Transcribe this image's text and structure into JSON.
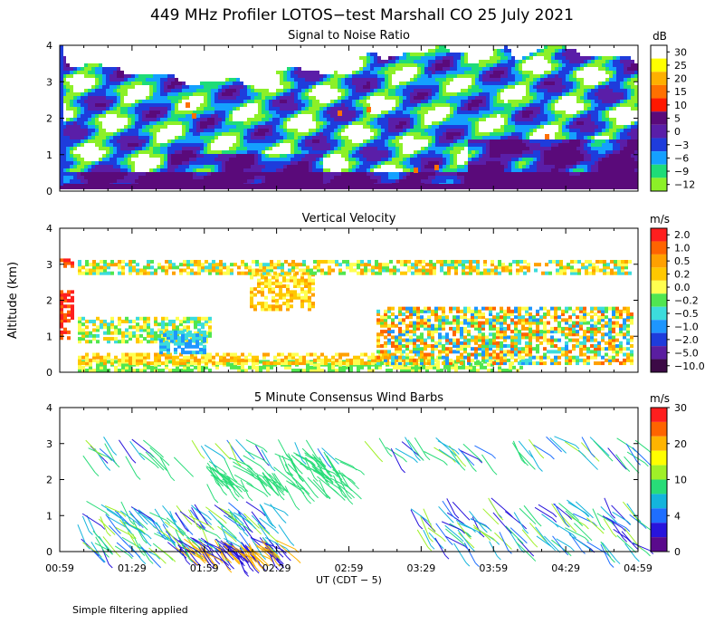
{
  "figure": {
    "title": "449 MHz Profiler LOTOS−test Marshall CO 25 July 2021",
    "footnote": "Simple filtering applied"
  },
  "chart_data": [
    {
      "type": "heatmap",
      "title": "Signal to Noise Ratio",
      "ylabel": "",
      "xlabel": "",
      "ylim": [
        0,
        4
      ],
      "yticks": [
        "0",
        "1",
        "2",
        "3",
        "4"
      ],
      "colorbar_unit": "dB",
      "colorbar_ticks": [
        "30",
        "25",
        "20",
        "15",
        "10",
        "5",
        "0",
        "−3",
        "−6",
        "−9",
        "−12"
      ],
      "colorbar_colors": [
        "#ffffff",
        "#ffff00",
        "#ffb000",
        "#ff7000",
        "#ff1800",
        "#5a0a7a",
        "#5a1ea8",
        "#1e3cdc",
        "#14a0ff",
        "#1edc78",
        "#8cf028"
      ]
    },
    {
      "type": "heatmap",
      "title": "Vertical Velocity",
      "ylabel": "Altitude (km)",
      "xlabel": "",
      "ylim": [
        0,
        4
      ],
      "yticks": [
        "0",
        "1",
        "2",
        "3",
        "4"
      ],
      "colorbar_unit": "m/s",
      "colorbar_ticks": [
        "2.0",
        "1.0",
        "0.5",
        "0.2",
        "0.0",
        "−0.2",
        "−0.5",
        "−1.0",
        "−2.0",
        "−5.0",
        "−10.0"
      ],
      "colorbar_colors": [
        "#ff1e1e",
        "#ff6400",
        "#ffa000",
        "#ffc800",
        "#ffff50",
        "#50e650",
        "#3cdcdc",
        "#1e96ff",
        "#1e3cdc",
        "#5a1ea0",
        "#3c0a46"
      ]
    },
    {
      "type": "scatter",
      "title": "5 Minute Consensus Wind Barbs",
      "ylabel": "",
      "xlabel": "UT  (CDT − 5)",
      "ylim": [
        0,
        4
      ],
      "yticks": [
        "0",
        "1",
        "2",
        "3",
        "4"
      ],
      "xticks": [
        "00:59",
        "01:29",
        "01:59",
        "02:29",
        "02:59",
        "03:29",
        "03:59",
        "04:29",
        "04:59"
      ],
      "colorbar_unit": "m/s",
      "colorbar_ticks": [
        "30",
        "20",
        "10",
        "4",
        "0"
      ],
      "colorbar_colors": [
        "#ff1e1e",
        "#ff6400",
        "#ffb400",
        "#ffff00",
        "#a0f028",
        "#28dc78",
        "#14b4dc",
        "#1e6eff",
        "#2814dc",
        "#5a0a8c"
      ]
    }
  ]
}
